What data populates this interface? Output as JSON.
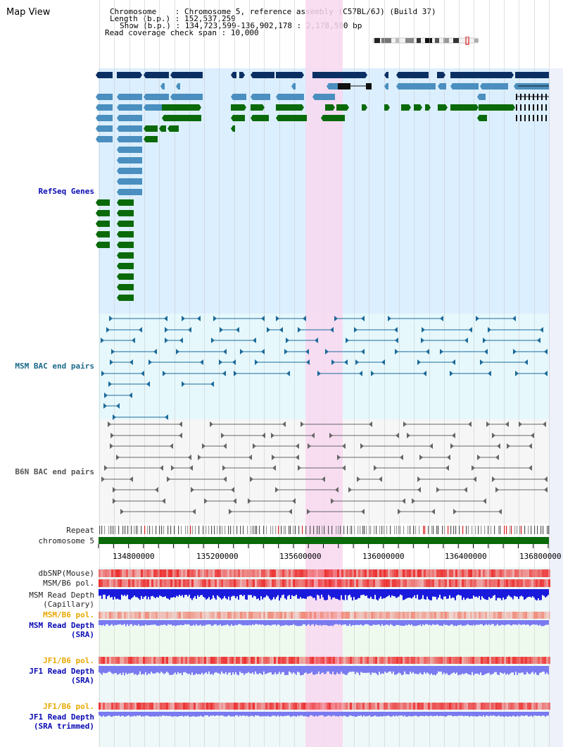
{
  "title": "Map View",
  "header": {
    "chromosome_label": "Chromosome",
    "chromosome_value": "Chromosome 5, reference assembly (C57BL/6J) (Build 37)",
    "length_label": "Length (b.p.)",
    "length_value": "152,537,259",
    "show_label": "Show (b.p.)",
    "show_value": "134,723,599-136,902,178 : 2,178,580 bp",
    "coverage_label": "Read coverage check span",
    "coverage_value": "10,000",
    "sep": ":"
  },
  "tracks": {
    "refseq": "RefSeq Genes",
    "msm_bac": "MSM BAC end pairs",
    "b6n_bac": "B6N BAC end pairs",
    "repeat": "Repeat",
    "chromosome": "chromosome 5",
    "dbsnp": "dbSNP(Mouse)",
    "msm_b6_pol": "MSM/B6 pol.",
    "msm_depth_cap_1": "MSM Read Depth",
    "msm_depth_cap_2": "(Capillary)",
    "msm_b6_pol_2": "MSM/B6 pol.",
    "msm_depth_sra_1": "MSM Read Depth",
    "msm_depth_sra_2": "(SRA)",
    "jf1_b6_pol": "JF1/B6 pol.",
    "jf1_depth_sra_1": "JF1 Read Depth",
    "jf1_depth_sra_2": "(SRA)",
    "jf1_b6_pol_2": "JF1/B6 pol.",
    "jf1_depth_trim_1": "JF1 Read Depth",
    "jf1_depth_trim_2": "(SRA trimmed)"
  },
  "axis_ticks": [
    "134800000",
    "135200000",
    "135600000",
    "136000000",
    "136400000",
    "136800000"
  ],
  "colors": {
    "refseq_bg": "#dcefff",
    "msm_bg": "#e6f8fc",
    "b6n_bg": "#f6f6f6",
    "highlight": "#f8d8f0",
    "gene_dark": "#0b2f63",
    "gene_mid": "#4a8fbf",
    "gene_green": "#0a6a0a",
    "msm_line": "#1c6a9a",
    "b6n_line": "#666666",
    "chrom_bar": "#0a6a0a",
    "pol_red": "#ef4040",
    "depth_blue": "#1a1adc",
    "depth_light": "#7a7af0"
  }
}
